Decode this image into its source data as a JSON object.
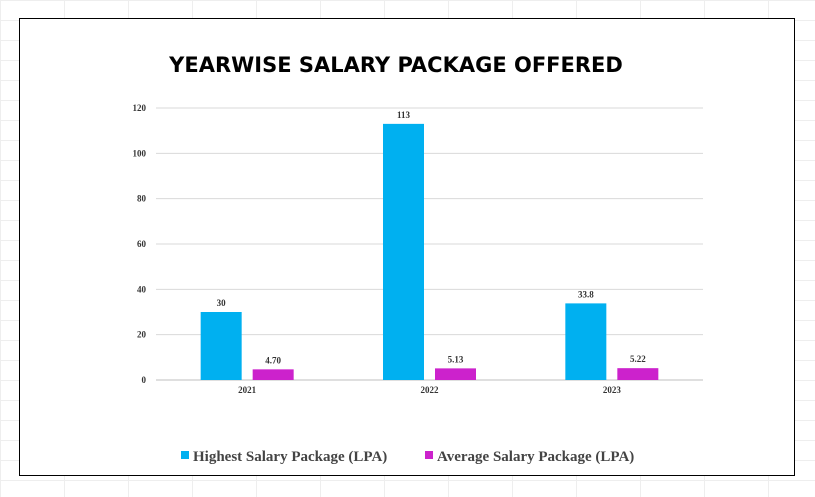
{
  "chart_data": {
    "type": "bar",
    "title": "YEARWISE SALARY PACKAGE OFFERED",
    "categories": [
      "2021",
      "2022",
      "2023"
    ],
    "series": [
      {
        "name": "Highest Salary Package (LPA)",
        "values": [
          30,
          113,
          33.8
        ],
        "labels": [
          "30",
          "113",
          "33.8"
        ],
        "color": "#00B0F0"
      },
      {
        "name": "Average Salary Package (LPA)",
        "values": [
          4.7,
          5.13,
          5.22
        ],
        "labels": [
          "4.70",
          "5.13",
          "5.22"
        ],
        "color": "#CC22CC"
      }
    ],
    "ylim": [
      0,
      120
    ],
    "yticks": [
      0,
      20,
      40,
      60,
      80,
      100,
      120
    ],
    "grid": true,
    "legend_position": "bottom"
  }
}
